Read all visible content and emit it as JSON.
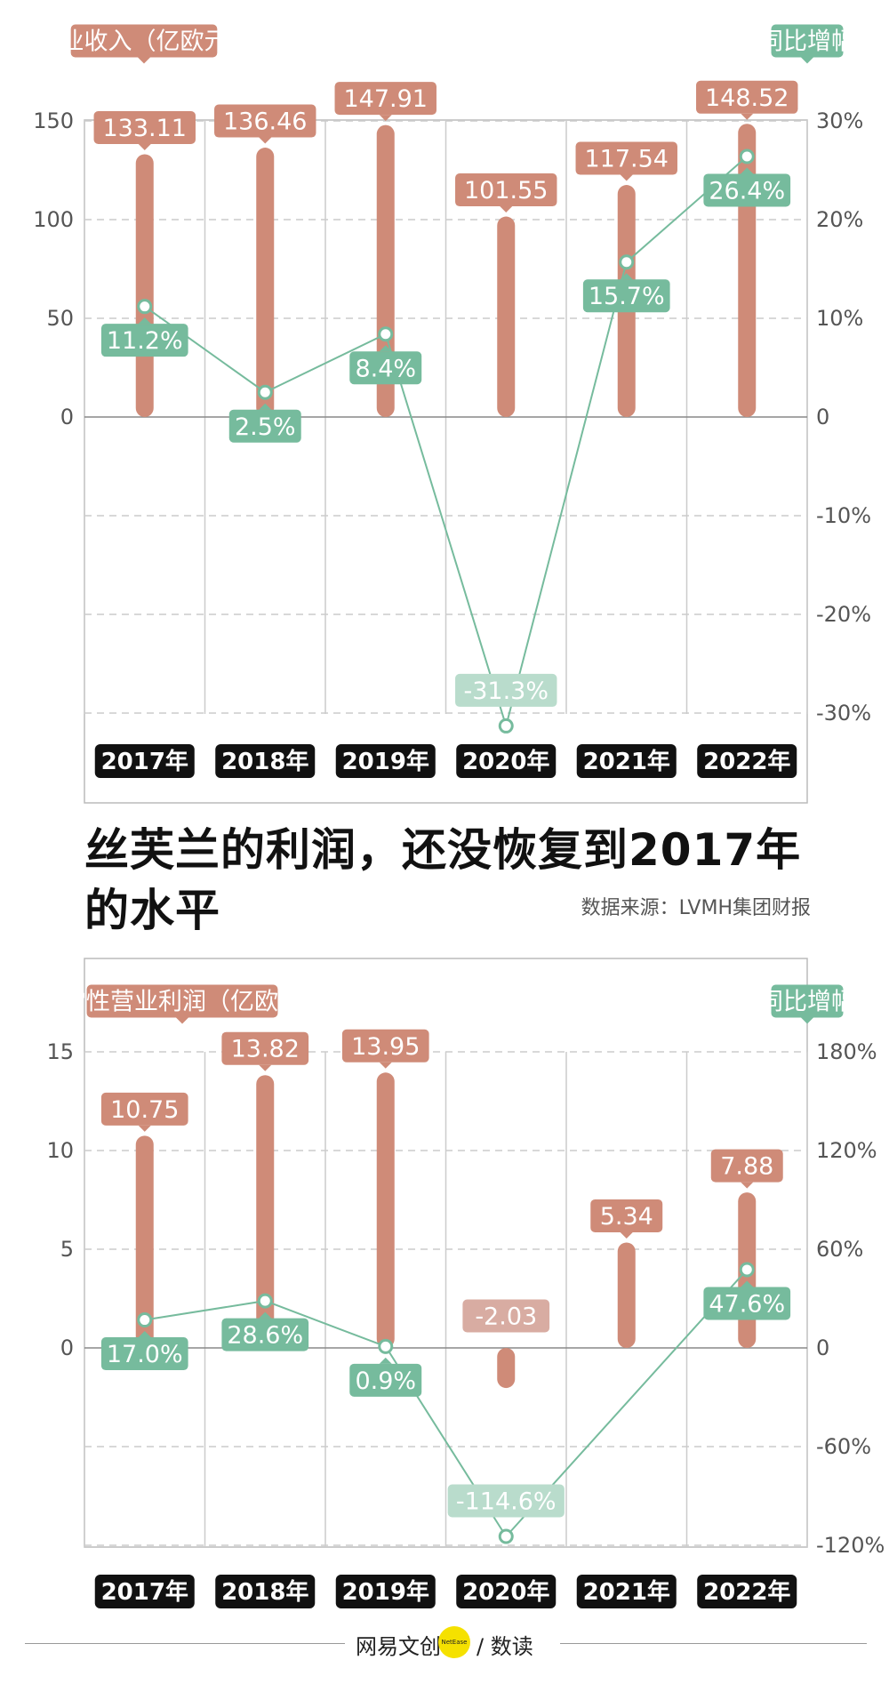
{
  "colors": {
    "bar": "#cf8b78",
    "bar_negative": "#d8aca2",
    "growth": "#76bb9d",
    "growth_faded": "#b9dccc",
    "year_badge": "#111111",
    "grid": "#cccccc"
  },
  "headline": {
    "title": "丝芙兰的利润，还没恢复到2017年的水平",
    "source": "数据来源：LVMH集团财报"
  },
  "footer": {
    "brand_left": "网易文创",
    "brand_dot": "NetEase",
    "brand_right": "/ 数读"
  },
  "chart_data": [
    {
      "type": "bar",
      "left_axis_label": "营业收入（亿欧元）",
      "right_axis_label": "同比增幅",
      "categories": [
        "2017年",
        "2018年",
        "2019年",
        "2020年",
        "2021年",
        "2022年"
      ],
      "ylim": [
        -45,
        150
      ],
      "yticks": [
        0,
        50,
        100,
        150
      ],
      "y2lim": [
        -30,
        30
      ],
      "y2ticks": [
        "-30%",
        "-20%",
        "-10%",
        "0",
        "10%",
        "20%",
        "30%"
      ],
      "series": [
        {
          "type": "bar",
          "values": [
            133.11,
            136.46,
            147.91,
            101.55,
            117.54,
            148.52
          ],
          "labels": [
            "133.11",
            "136.46",
            "147.91",
            "101.55",
            "117.54",
            "148.52"
          ]
        },
        {
          "type": "line",
          "values": [
            11.2,
            2.5,
            8.4,
            -31.3,
            15.7,
            26.4
          ],
          "labels": [
            "11.2%",
            "2.5%",
            "8.4%",
            "-31.3%",
            "15.7%",
            "26.4%"
          ]
        }
      ],
      "grid": true
    },
    {
      "type": "bar",
      "left_axis_label": "经常性营业利润（亿欧元）",
      "right_axis_label": "同比增幅",
      "categories": [
        "2017年",
        "2018年",
        "2019年",
        "2020年",
        "2021年",
        "2022年"
      ],
      "ylim": [
        -10,
        15
      ],
      "yticks": [
        0,
        5,
        10,
        15
      ],
      "y2lim": [
        -120,
        180
      ],
      "y2ticks": [
        "-120%",
        "-60%",
        "0",
        "60%",
        "120%",
        "180%"
      ],
      "series": [
        {
          "type": "bar",
          "values": [
            10.75,
            13.82,
            13.95,
            -2.03,
            5.34,
            7.88
          ],
          "labels": [
            "10.75",
            "13.82",
            "13.95",
            "-2.03",
            "5.34",
            "7.88"
          ]
        },
        {
          "type": "line",
          "values": [
            17.0,
            28.6,
            0.9,
            -114.6,
            null,
            47.6
          ],
          "labels": [
            "17.0%",
            "28.6%",
            "0.9%",
            "-114.6%",
            "",
            "47.6%"
          ]
        }
      ],
      "grid": true
    }
  ]
}
